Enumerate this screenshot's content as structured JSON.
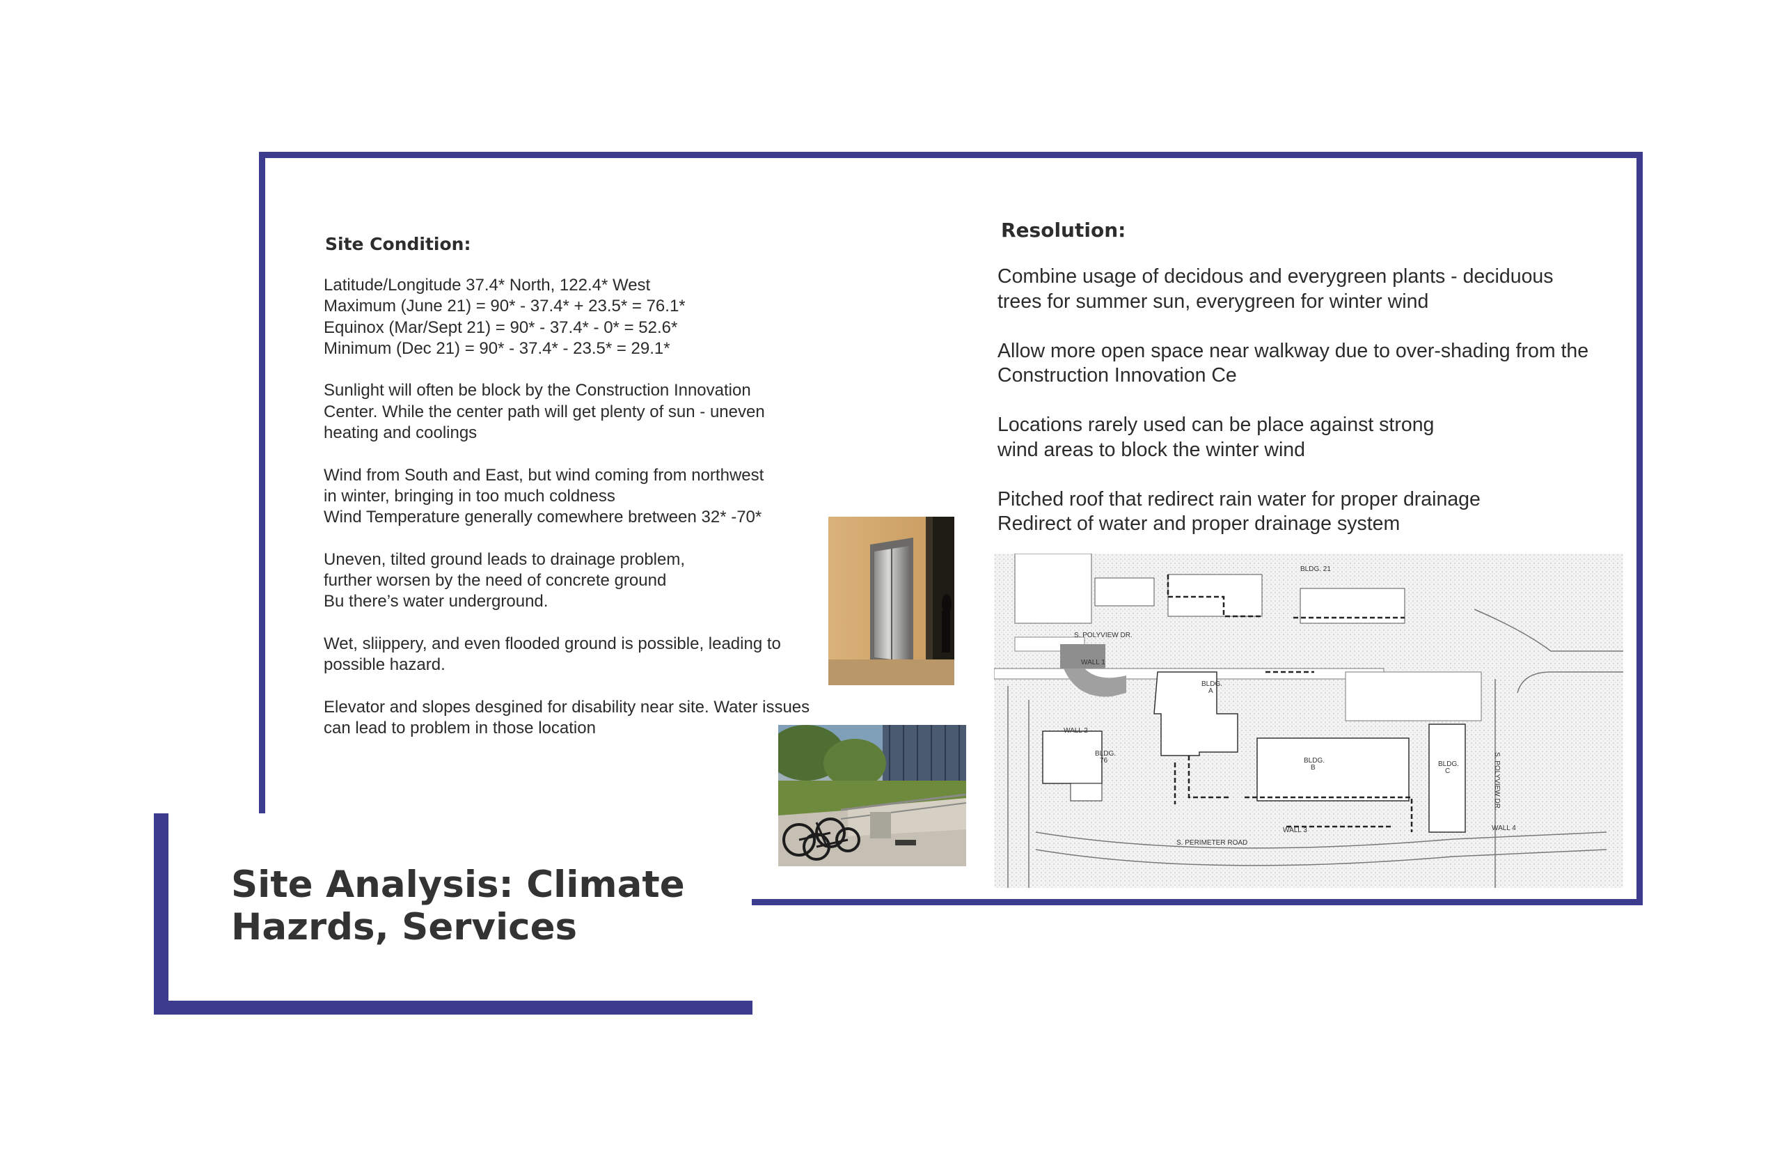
{
  "site_condition": {
    "heading": "Site Condition:",
    "paragraphs": [
      "Latitude/Longitude 37.4* North, 122.4* West\nMaximum (June 21) = 90* - 37.4* + 23.5* = 76.1*\nEquinox (Mar/Sept 21) = 90* - 37.4* - 0* = 52.6*\nMinimum (Dec 21) = 90* - 37.4* - 23.5* = 29.1*",
      "Sunlight will often be block by the Construction Innovation\nCenter. While the center path will get plenty of sun - uneven\nheating and coolings",
      "Wind from South and East, but wind coming from northwest\nin winter, bringing in too much coldness\nWind Temperature generally comewhere bretween 32* -70*",
      "Uneven, tilted ground leads to drainage problem,\nfurther worsen by the need of concrete ground\nBu there’s water underground.",
      "Wet, sliippery, and even flooded ground is possible, leading to\npossible hazard.",
      "Elevator and slopes desgined for disability near site. Water issues\ncan lead to problem in those location"
    ]
  },
  "resolution": {
    "heading": "Resolution:",
    "paragraphs": [
      "Combine usage of decidous and everygreen plants - deciduous\ntrees for summer sun, everygreen for winter wind",
      "Allow more open space near walkway due to over-shading from the\nConstruction Innovation Ce",
      "Locations rarely used can be place against strong\nwind areas to block the winter wind",
      "Pitched roof that redirect rain water for proper drainage\nRedirect of water and proper drainage system"
    ]
  },
  "title": "Site Analysis: Climate Hazrds, Services",
  "site_plan": {
    "labels": {
      "bldg21": "BLDG. 21",
      "polyview_dr_top": "S. POLYVIEW DR.",
      "wall1": "WALL 1",
      "bldga_1": "BLDG.",
      "bldga_2": "A",
      "wall2": "WALL 2",
      "bldg76_1": "BLDG.",
      "bldg76_2": "76",
      "bldgb_1": "BLDG.",
      "bldgb_2": "B",
      "bldgc_1": "BLDG.",
      "bldgc_2": "C",
      "polyview_dr_side": "S. POLYVIEW DR.",
      "wall3": "WALL 3",
      "wall4": "WALL 4",
      "perimeter_road": "S. PERIMETER ROAD"
    }
  },
  "colors": {
    "frame": "#3c3b8e",
    "text": "#2b2b2b"
  }
}
